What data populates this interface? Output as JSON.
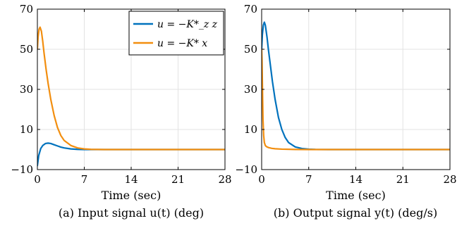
{
  "chart_data": [
    {
      "type": "line",
      "caption": "(a) Input signal u(t) (deg)",
      "xlabel": "Time (sec)",
      "ylabel": "",
      "xlim": [
        0,
        28
      ],
      "ylim": [
        -10,
        70
      ],
      "xticks": [
        0,
        7,
        14,
        21,
        28
      ],
      "yticks": [
        -10,
        10,
        30,
        50,
        70
      ],
      "xtick_labels": [
        "0",
        "7",
        "14",
        "21",
        "28"
      ],
      "ytick_labels": [
        "−10",
        "10",
        "30",
        "50",
        "70"
      ],
      "grid": true,
      "legend": "top-right",
      "series": [
        {
          "name": "u = −K*_z z",
          "color": "#0072BD",
          "x": [
            0,
            0.2,
            0.5,
            0.8,
            1.2,
            1.6,
            2.0,
            2.5,
            3.0,
            3.5,
            4.0,
            5.0,
            6.0,
            7.0,
            8.0,
            10.0,
            14.0,
            21.0,
            28.0
          ],
          "y": [
            -8,
            -3,
            0.5,
            2.0,
            3.0,
            3.2,
            3.0,
            2.4,
            1.8,
            1.2,
            0.8,
            0.3,
            0.1,
            0.0,
            0.0,
            0.0,
            0.0,
            0.0,
            0.0
          ]
        },
        {
          "name": "u = −K* x",
          "color": "#F28E0F",
          "x": [
            0,
            0.1,
            0.25,
            0.4,
            0.6,
            0.8,
            1.0,
            1.3,
            1.6,
            2.0,
            2.5,
            3.0,
            3.5,
            4.0,
            5.0,
            6.0,
            7.0,
            8.0,
            10.0,
            14.0,
            21.0,
            28.0
          ],
          "y": [
            50,
            56,
            60,
            61,
            59,
            54,
            48,
            40,
            33,
            25,
            17,
            11,
            7,
            4.5,
            2,
            0.8,
            0.3,
            0.1,
            0.0,
            0.0,
            0.0,
            0.0
          ]
        }
      ]
    },
    {
      "type": "line",
      "caption": "(b) Output signal y(t) (deg/s)",
      "xlabel": "Time (sec)",
      "ylabel": "",
      "xlim": [
        0,
        28
      ],
      "ylim": [
        -10,
        70
      ],
      "xticks": [
        0,
        7,
        14,
        21,
        28
      ],
      "yticks": [
        -10,
        10,
        30,
        50,
        70
      ],
      "xtick_labels": [
        "0",
        "7",
        "14",
        "21",
        "28"
      ],
      "ytick_labels": [
        "−10",
        "10",
        "30",
        "50",
        "70"
      ],
      "grid": true,
      "series": [
        {
          "color": "#0072BD",
          "x": [
            0,
            0.1,
            0.25,
            0.4,
            0.55,
            0.8,
            1.0,
            1.3,
            1.6,
            2.0,
            2.5,
            3.0,
            3.5,
            4.0,
            5.0,
            6.0,
            7.0,
            8.0,
            10.0,
            14.0,
            21.0,
            28.0
          ],
          "y": [
            50,
            57,
            62,
            63.5,
            62,
            56,
            50,
            42,
            34,
            25,
            16,
            10,
            6,
            3.5,
            1.3,
            0.5,
            0.2,
            0.05,
            0.0,
            0.0,
            0.0,
            0.0
          ]
        },
        {
          "color": "#F28E0F",
          "x": [
            0,
            0.05,
            0.1,
            0.15,
            0.2,
            0.3,
            0.4,
            0.55,
            0.7,
            1.0,
            1.5,
            2.0,
            3.0,
            5.0,
            7.0,
            14.0,
            21.0,
            28.0
          ],
          "y": [
            50,
            45,
            35,
            25,
            15,
            7,
            3.5,
            2,
            1.5,
            1.0,
            0.6,
            0.4,
            0.2,
            0.05,
            0.0,
            0.0,
            0.0,
            0.0
          ]
        }
      ]
    }
  ]
}
